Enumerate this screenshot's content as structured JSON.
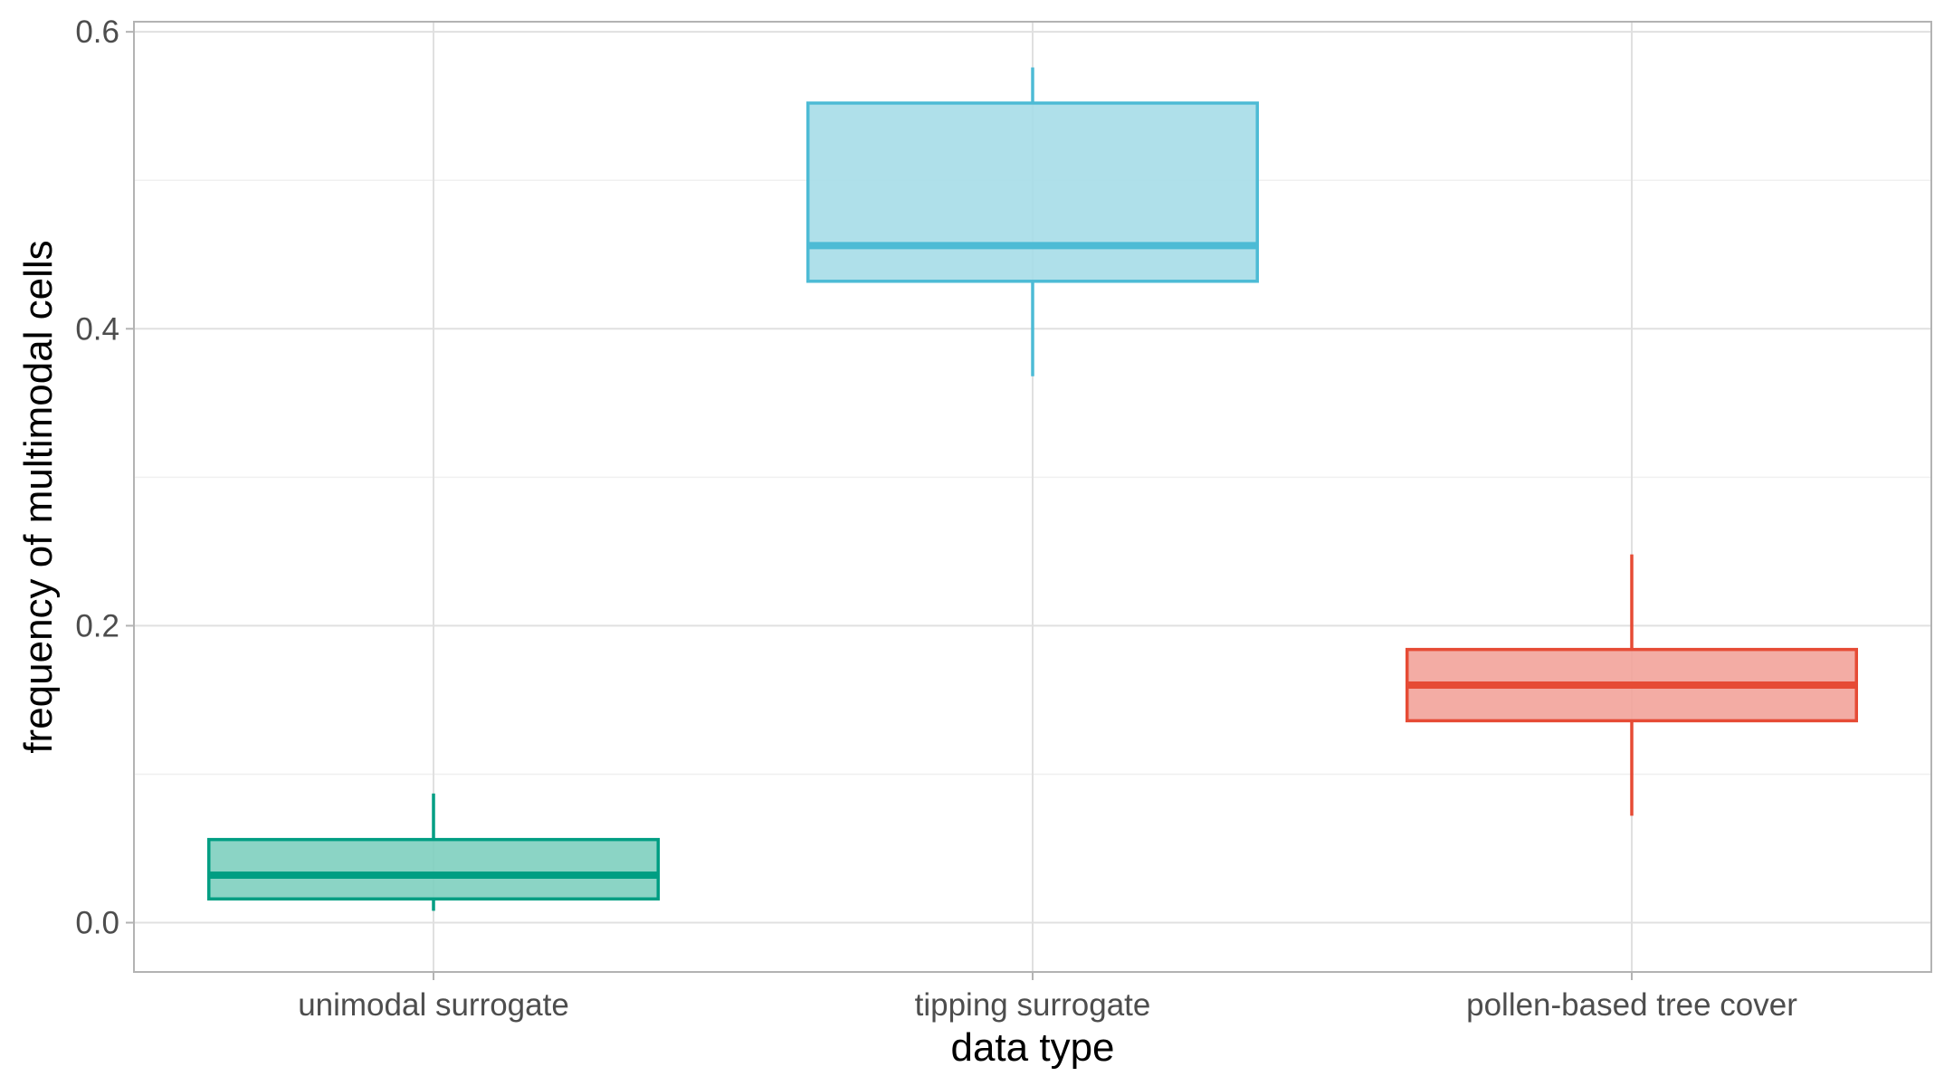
{
  "chart_data": {
    "type": "box",
    "title": "",
    "xlabel": "data type",
    "ylabel": "frequency of multimodal cells",
    "categories": [
      "unimodal surrogate",
      "tipping surrogate",
      "pollen-based tree cover"
    ],
    "ylim": [
      -0.02,
      0.6
    ],
    "yticks": [
      "0.0",
      "0.2",
      "0.4",
      "0.6"
    ],
    "ytick_values": [
      0.0,
      0.2,
      0.4,
      0.6
    ],
    "grid": true,
    "legend": "none",
    "boxes": [
      {
        "category": "unimodal surrogate",
        "whisker_low": 0.008,
        "q1": 0.016,
        "median": 0.032,
        "q3": 0.056,
        "whisker_high": 0.087,
        "color": "#009E83",
        "fill": "#7ECFBF"
      },
      {
        "category": "tipping surrogate",
        "whisker_low": 0.368,
        "q1": 0.432,
        "median": 0.456,
        "q3": 0.552,
        "whisker_high": 0.576,
        "color": "#4DBBD5",
        "fill": "#A6DDE8"
      },
      {
        "category": "pollen-based tree cover",
        "whisker_low": 0.072,
        "q1": 0.136,
        "median": 0.16,
        "q3": 0.184,
        "whisker_high": 0.248,
        "color": "#E64B35",
        "fill": "#F2A39A"
      }
    ]
  }
}
